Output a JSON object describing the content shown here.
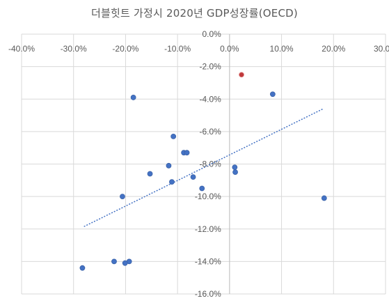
{
  "chart_data": {
    "type": "scatter",
    "title": "더블힛트 가정시 2020년 GDP성장률(OECD)",
    "xlabel": "",
    "ylabel": "",
    "xlim": [
      -0.4,
      0.3
    ],
    "ylim": [
      -0.16,
      0.0
    ],
    "x_ticks": [
      -0.4,
      -0.3,
      -0.2,
      -0.1,
      0.0,
      0.1,
      0.2,
      0.3
    ],
    "y_ticks": [
      0.0,
      -0.02,
      -0.04,
      -0.06,
      -0.08,
      -0.1,
      -0.12,
      -0.14,
      -0.16
    ],
    "x_tick_labels": [
      "-40.0%",
      "-30.0%",
      "-20.0%",
      "-10.0%",
      "0.0%",
      "10.0%",
      "20.0%",
      "30.0%"
    ],
    "y_tick_labels": [
      "0.0%",
      "-2.0%",
      "-4.0%",
      "-6.0%",
      "-8.0%",
      "-10.0%",
      "-12.0%",
      "-14.0%",
      "-16.0%"
    ],
    "grid": true,
    "colors": {
      "point": "#4472c4",
      "highlight": "#c0393b",
      "trend": "#4472c4",
      "grid": "#d9d9d9"
    },
    "points": [
      {
        "x": 0.023,
        "y": -0.025,
        "highlight": true
      },
      {
        "x": 0.083,
        "y": -0.037
      },
      {
        "x": -0.185,
        "y": -0.039
      },
      {
        "x": -0.108,
        "y": -0.063
      },
      {
        "x": -0.088,
        "y": -0.073
      },
      {
        "x": -0.082,
        "y": -0.073
      },
      {
        "x": -0.117,
        "y": -0.081
      },
      {
        "x": 0.01,
        "y": -0.082
      },
      {
        "x": 0.011,
        "y": -0.085
      },
      {
        "x": -0.153,
        "y": -0.086
      },
      {
        "x": -0.07,
        "y": -0.088
      },
      {
        "x": -0.111,
        "y": -0.091
      },
      {
        "x": -0.053,
        "y": -0.095
      },
      {
        "x": -0.206,
        "y": -0.1
      },
      {
        "x": 0.182,
        "y": -0.101
      },
      {
        "x": -0.222,
        "y": -0.14
      },
      {
        "x": -0.193,
        "y": -0.14
      },
      {
        "x": -0.201,
        "y": -0.141
      },
      {
        "x": -0.283,
        "y": -0.144
      }
    ],
    "trendline": {
      "x": [
        -0.28,
        0.18
      ],
      "y": [
        -0.1185,
        -0.046
      ]
    }
  }
}
